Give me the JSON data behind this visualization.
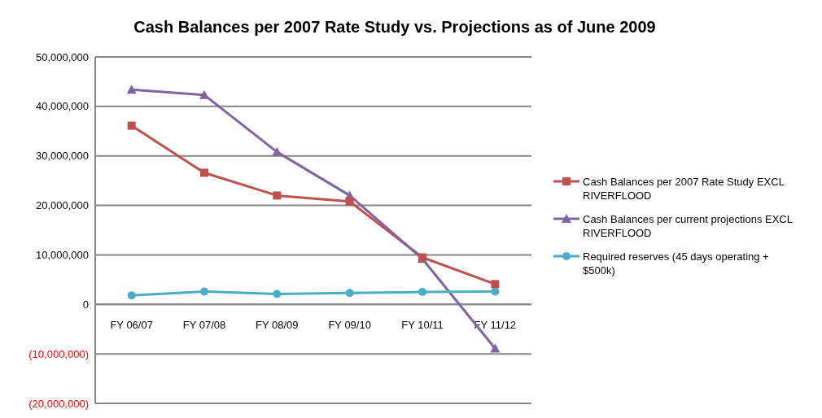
{
  "chart_data": {
    "type": "line",
    "title": "Cash Balances per 2007 Rate Study vs. Projections as of June 2009",
    "categories": [
      "FY 06/07",
      "FY 07/08",
      "FY 08/09",
      "FY 09/10",
      "FY 10/11",
      "FY 11/12"
    ],
    "series": [
      {
        "name": "Cash Balances per 2007 Rate Study EXCL RIVERFLOOD",
        "color": "#c0504d",
        "marker": "square",
        "values": [
          36100000,
          26600000,
          22000000,
          20800000,
          9500000,
          4100000
        ]
      },
      {
        "name": "Cash Balances per current projections EXCL RIVERFLOOD",
        "color": "#8064a2",
        "marker": "triangle",
        "values": [
          43400000,
          42300000,
          30800000,
          22000000,
          9200000,
          -8900000
        ]
      },
      {
        "name": "Required reserves (45 days operating + $500k)",
        "color": "#4bacc6",
        "marker": "circle",
        "values": [
          1800000,
          2600000,
          2100000,
          2300000,
          2500000,
          2600000
        ]
      }
    ],
    "ylim": [
      -20000000,
      50000000
    ],
    "yticks": [
      {
        "value": -20000000,
        "label": "(20,000,000)"
      },
      {
        "value": -10000000,
        "label": "(10,000,000)"
      },
      {
        "value": 0,
        "label": "0"
      },
      {
        "value": 10000000,
        "label": "10,000,000"
      },
      {
        "value": 20000000,
        "label": "20,000,000"
      },
      {
        "value": 30000000,
        "label": "30,000,000"
      },
      {
        "value": 40000000,
        "label": "40,000,000"
      },
      {
        "value": 50000000,
        "label": "50,000,000"
      }
    ],
    "grid": "y",
    "legend": "right"
  }
}
